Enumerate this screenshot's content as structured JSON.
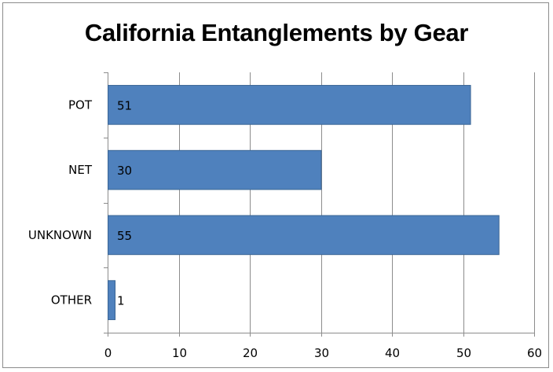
{
  "chart_data": {
    "type": "bar",
    "orientation": "horizontal",
    "title": "California Entanglements by Gear",
    "categories": [
      "POT",
      "NET",
      "UNKNOWN",
      "OTHER"
    ],
    "values": [
      51,
      30,
      55,
      1
    ],
    "data_labels": [
      "51",
      "30",
      "55",
      "1"
    ],
    "xlim": [
      0,
      60
    ],
    "x_ticks": [
      0,
      10,
      20,
      30,
      40,
      50,
      60
    ],
    "x_tick_labels": [
      "0",
      "10",
      "20",
      "30",
      "40",
      "50",
      "60"
    ],
    "xlabel": "",
    "ylabel": "",
    "grid": true,
    "legend": "none",
    "bar_color": "#4f81bd",
    "bar_border_color": "#3a6594",
    "grid_color": "#8c8c8c"
  }
}
